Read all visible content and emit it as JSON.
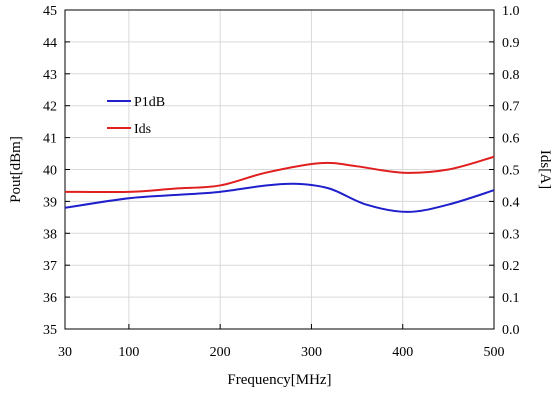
{
  "chart_data": {
    "type": "line",
    "title": "",
    "xlabel": "Frequency[MHz]",
    "ylabel_left": "Pout[dBm]",
    "ylabel_right": "Ids[A]",
    "xlim": [
      30,
      500
    ],
    "ylim_left": [
      35,
      45
    ],
    "ylim_right": [
      0.0,
      1.0
    ],
    "x_ticks": [
      "30",
      "100",
      "200",
      "300",
      "400",
      "500"
    ],
    "y_left_ticks": [
      "35",
      "36",
      "37",
      "38",
      "39",
      "40",
      "41",
      "42",
      "43",
      "44",
      "45"
    ],
    "y_right_ticks": [
      "0.0",
      "0.1",
      "0.2",
      "0.3",
      "0.4",
      "0.5",
      "0.6",
      "0.7",
      "0.8",
      "0.9",
      "1.0"
    ],
    "grid": true,
    "legend": "upper-left",
    "series": [
      {
        "name": "P1dB",
        "axis": "left",
        "color": "#1f1fcc",
        "points": [
          [
            30,
            38.8
          ],
          [
            100,
            39.1
          ],
          [
            150,
            39.2
          ],
          [
            200,
            39.3
          ],
          [
            250,
            39.5
          ],
          [
            285,
            39.55
          ],
          [
            320,
            39.4
          ],
          [
            360,
            38.9
          ],
          [
            405,
            38.67
          ],
          [
            450,
            38.9
          ],
          [
            500,
            39.35
          ]
        ]
      },
      {
        "name": "Ids",
        "axis": "right",
        "color": "#e01f1f",
        "points": [
          [
            30,
            0.43
          ],
          [
            100,
            0.43
          ],
          [
            150,
            0.44
          ],
          [
            200,
            0.45
          ],
          [
            250,
            0.49
          ],
          [
            310,
            0.52
          ],
          [
            350,
            0.51
          ],
          [
            400,
            0.49
          ],
          [
            450,
            0.5
          ],
          [
            500,
            0.54
          ]
        ]
      }
    ]
  }
}
